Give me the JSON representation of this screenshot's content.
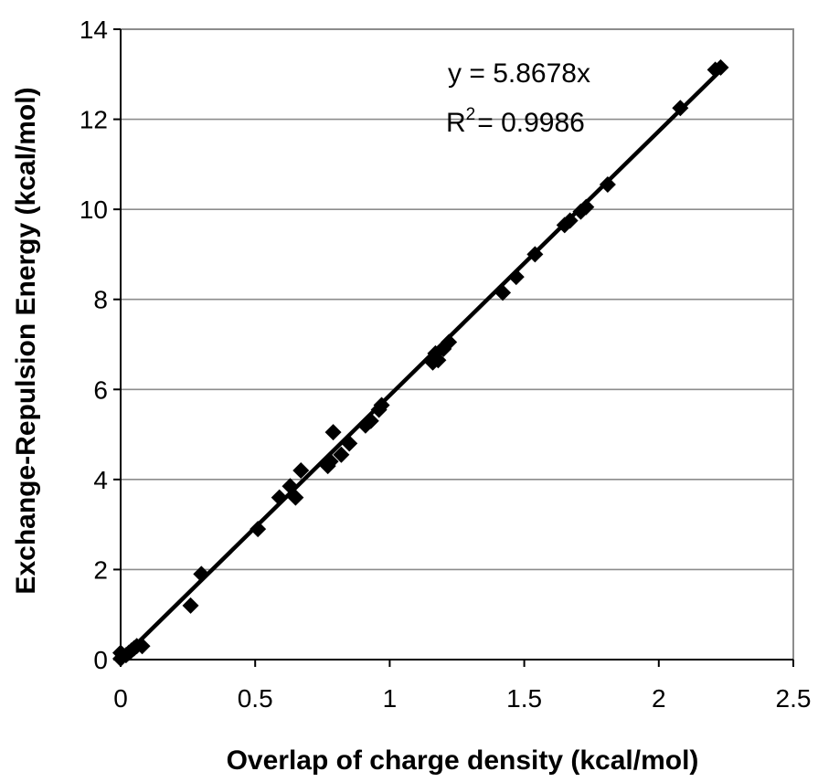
{
  "chart_data": {
    "type": "scatter",
    "xlabel": "Overlap of charge density (kcal/mol)",
    "ylabel": "Exchange-Repulsion Energy (kcal/mol)",
    "xlim": [
      0,
      2.5
    ],
    "ylim": [
      0,
      14
    ],
    "xticks": [
      "0",
      "0.5",
      "1",
      "1.5",
      "2",
      "2.5"
    ],
    "yticks": [
      "0",
      "2",
      "4",
      "6",
      "8",
      "10",
      "12",
      "14"
    ],
    "grid": "horizontal",
    "legend": "none",
    "trendline": {
      "equation": "y = 5.8678x",
      "r_squared_label": "R",
      "r_squared_exponent": "2",
      "r_squared_value": "= 0.9986",
      "slope": 5.8678
    },
    "points": [
      {
        "x": 0.0,
        "y": 0.02
      },
      {
        "x": 0.0,
        "y": 0.15
      },
      {
        "x": 0.02,
        "y": 0.1
      },
      {
        "x": 0.03,
        "y": 0.15
      },
      {
        "x": 0.04,
        "y": 0.2
      },
      {
        "x": 0.05,
        "y": 0.25
      },
      {
        "x": 0.06,
        "y": 0.3
      },
      {
        "x": 0.08,
        "y": 0.3
      },
      {
        "x": 0.26,
        "y": 1.2
      },
      {
        "x": 0.3,
        "y": 1.9
      },
      {
        "x": 0.51,
        "y": 2.9
      },
      {
        "x": 0.59,
        "y": 3.6
      },
      {
        "x": 0.63,
        "y": 3.85
      },
      {
        "x": 0.65,
        "y": 3.6
      },
      {
        "x": 0.67,
        "y": 4.2
      },
      {
        "x": 0.77,
        "y": 4.3
      },
      {
        "x": 0.78,
        "y": 4.4
      },
      {
        "x": 0.79,
        "y": 5.05
      },
      {
        "x": 0.82,
        "y": 4.55
      },
      {
        "x": 0.85,
        "y": 4.8
      },
      {
        "x": 0.91,
        "y": 5.2
      },
      {
        "x": 0.93,
        "y": 5.3
      },
      {
        "x": 0.96,
        "y": 5.55
      },
      {
        "x": 0.97,
        "y": 5.65
      },
      {
        "x": 1.16,
        "y": 6.6
      },
      {
        "x": 1.17,
        "y": 6.8
      },
      {
        "x": 1.18,
        "y": 6.65
      },
      {
        "x": 1.2,
        "y": 6.9
      },
      {
        "x": 1.22,
        "y": 7.05
      },
      {
        "x": 1.42,
        "y": 8.15
      },
      {
        "x": 1.47,
        "y": 8.5
      },
      {
        "x": 1.54,
        "y": 9.0
      },
      {
        "x": 1.65,
        "y": 9.65
      },
      {
        "x": 1.67,
        "y": 9.75
      },
      {
        "x": 1.71,
        "y": 9.95
      },
      {
        "x": 1.73,
        "y": 10.05
      },
      {
        "x": 1.81,
        "y": 10.55
      },
      {
        "x": 2.08,
        "y": 12.25
      },
      {
        "x": 2.21,
        "y": 13.1
      },
      {
        "x": 2.23,
        "y": 13.15
      }
    ]
  }
}
